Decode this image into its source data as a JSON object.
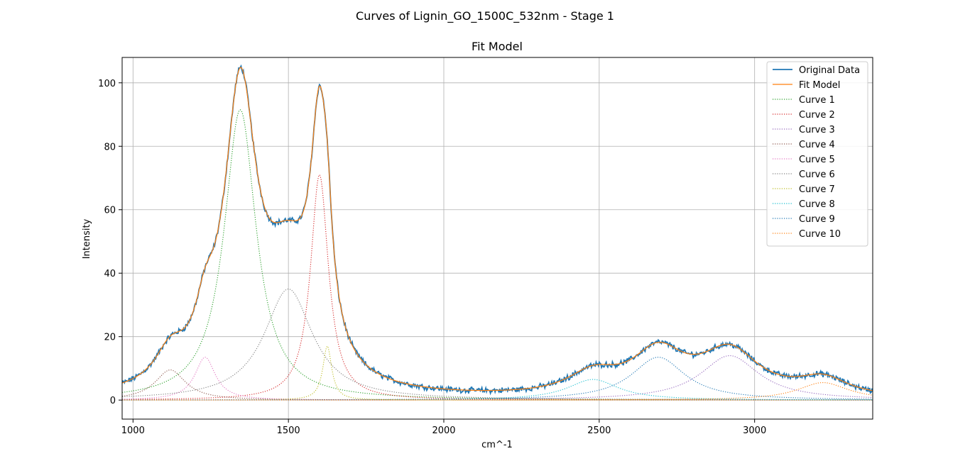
{
  "figure": {
    "suptitle": "Curves of Lignin_GO_1500C_532nm - Stage 1"
  },
  "chart_data": {
    "type": "line",
    "title": "Fit Model",
    "xlabel": "cm^-1",
    "ylabel": "Intensity",
    "xlim": [
      965,
      3380
    ],
    "ylim": [
      -6,
      108
    ],
    "xticks": [
      1000,
      1500,
      2000,
      2500,
      3000
    ],
    "yticks": [
      0,
      20,
      40,
      60,
      80,
      100
    ],
    "grid": true,
    "legend_position": "top-right",
    "noise_amplitude": 0.7,
    "series": [
      {
        "name": "Original Data",
        "color": "#1f77b4",
        "style": "solid",
        "role": "data"
      },
      {
        "name": "Fit Model",
        "color": "#ff7f0e",
        "style": "solid",
        "role": "fit"
      },
      {
        "name": "Curve 1",
        "color": "#2ca02c",
        "style": "dotted",
        "center": 1345,
        "amplitude": 91.5,
        "fwhm": 125
      },
      {
        "name": "Curve 2",
        "color": "#d62728",
        "style": "dotted",
        "center": 1600,
        "amplitude": 71,
        "fwhm": 70
      },
      {
        "name": "Curve 3",
        "color": "#9467bd",
        "style": "dotted",
        "center": 2920,
        "amplitude": 14,
        "fwhm": 230
      },
      {
        "name": "Curve 4",
        "color": "#8c564b",
        "style": "dotted",
        "center": 1120,
        "amplitude": 9.5,
        "fwhm": 120
      },
      {
        "name": "Curve 5",
        "color": "#e377c2",
        "style": "dotted",
        "center": 1232,
        "amplitude": 13.5,
        "fwhm": 80
      },
      {
        "name": "Curve 6",
        "color": "#7f7f7f",
        "style": "dotted",
        "center": 1500,
        "amplitude": 35,
        "fwhm": 190
      },
      {
        "name": "Curve 7",
        "color": "#bcbd22",
        "style": "dotted",
        "center": 1625,
        "amplitude": 17,
        "fwhm": 35
      },
      {
        "name": "Curve 8",
        "color": "#17becf",
        "style": "dotted",
        "center": 2480,
        "amplitude": 6.5,
        "fwhm": 200
      },
      {
        "name": "Curve 9",
        "color": "#1f77b4",
        "style": "dotted",
        "center": 2690,
        "amplitude": 13.5,
        "fwhm": 210
      },
      {
        "name": "Curve 10",
        "color": "#ff7f0e",
        "style": "dotted",
        "center": 3220,
        "amplitude": 5.5,
        "fwhm": 200
      }
    ]
  }
}
